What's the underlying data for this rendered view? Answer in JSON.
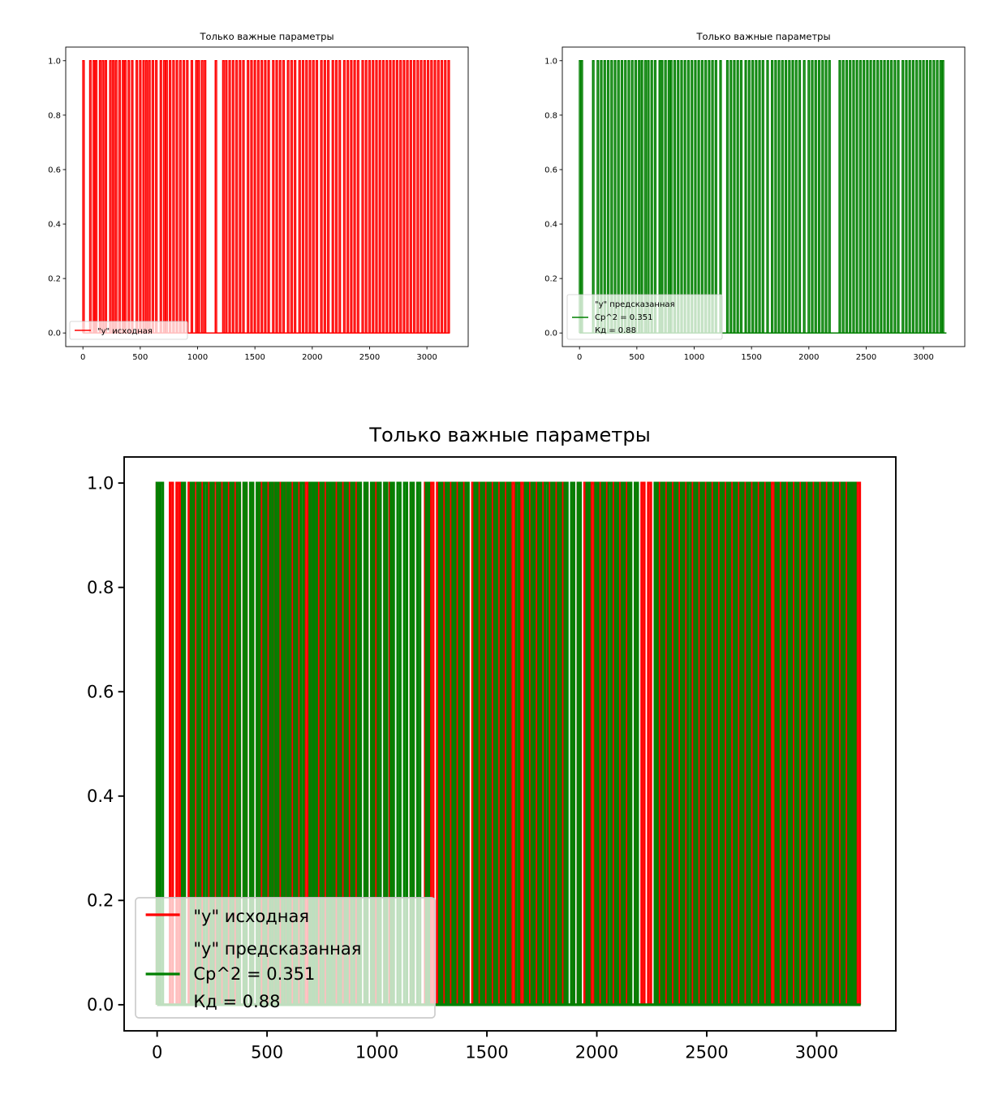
{
  "chart_data": [
    {
      "type": "line",
      "title": "Только важные параметры",
      "xlabel": "",
      "ylabel": "",
      "xlim": [
        -150,
        3360
      ],
      "ylim": [
        -0.05,
        1.05
      ],
      "xticks": [
        0,
        500,
        1000,
        1500,
        2000,
        2500,
        3000
      ],
      "yticks": [
        0.0,
        0.2,
        0.4,
        0.6,
        0.8,
        1.0
      ],
      "legend_position": "lower-left",
      "series": [
        {
          "name": "\"y\" исходная",
          "color": "#ff0000",
          "x_range": [
            0,
            3200
          ],
          "value_levels": [
            0,
            1
          ],
          "spikes_at_1": [
            5,
            65,
            95,
            115,
            150,
            175,
            200,
            240,
            265,
            290,
            320,
            350,
            370,
            400,
            430,
            470,
            500,
            530,
            555,
            580,
            610,
            640,
            680,
            710,
            730,
            760,
            790,
            820,
            850,
            880,
            910,
            950,
            990,
            1010,
            1040,
            1065,
            1160,
            1225,
            1250,
            1280,
            1310,
            1340,
            1370,
            1400,
            1440,
            1470,
            1500,
            1530,
            1560,
            1590,
            1620,
            1660,
            1690,
            1720,
            1750,
            1790,
            1820,
            1850,
            1890,
            1920,
            1950,
            1980,
            2010,
            2040,
            2080,
            2110,
            2140,
            2180,
            2210,
            2240,
            2280,
            2310,
            2340,
            2370,
            2400,
            2440,
            2470,
            2500,
            2530,
            2560,
            2590,
            2620,
            2650,
            2680,
            2710,
            2740,
            2770,
            2800,
            2830,
            2860,
            2890,
            2920,
            2950,
            2980,
            3010,
            3040,
            3070,
            3100,
            3130,
            3160,
            3190
          ]
        },
        {
          "name": "\"y\" предсказанная\nCp^2 = 0.351\nКд = 0.88",
          "color": "#008000",
          "x_range": [
            0,
            3200
          ],
          "value_levels": [
            0,
            1
          ],
          "spikes_at_1": [
            5,
            20,
            120,
            160,
            190,
            220,
            250,
            280,
            310,
            340,
            370,
            400,
            430,
            460,
            490,
            520,
            545,
            575,
            600,
            630,
            660,
            700,
            720,
            750,
            780,
            800,
            830,
            860,
            890,
            920,
            950,
            980,
            1010,
            1040,
            1070,
            1100,
            1130,
            1160,
            1190,
            1230,
            1290,
            1320,
            1350,
            1380,
            1410,
            1450,
            1480,
            1510,
            1540,
            1570,
            1600,
            1640,
            1680,
            1710,
            1740,
            1770,
            1800,
            1830,
            1860,
            1890,
            1920,
            1960,
            2000,
            2030,
            2060,
            2090,
            2120,
            2150,
            2180,
            2270,
            2300,
            2330,
            2360,
            2390,
            2420,
            2450,
            2480,
            2510,
            2540,
            2570,
            2600,
            2630,
            2660,
            2690,
            2720,
            2750,
            2780,
            2820,
            2850,
            2880,
            2910,
            2940,
            2970,
            3000,
            3030,
            3060,
            3090,
            3120,
            3150,
            3170
          ]
        }
      ],
      "panels": [
        {
          "title": "Только важные параметры",
          "series_shown": [
            "\"y\" исходная"
          ]
        },
        {
          "title": "Только важные параметры",
          "series_shown": [
            "\"y\" предсказанная\nCp^2 = 0.351\nКд = 0.88"
          ]
        },
        {
          "title": "Только важные параметры",
          "series_shown": [
            "\"y\" исходная",
            "\"y\" предсказанная\nCp^2 = 0.351\nКд = 0.88"
          ]
        }
      ]
    }
  ],
  "legend_labels": {
    "original": "\"y\" исходная",
    "predicted_line1": "\"y\" предсказанная",
    "predicted_line2": "Cp^2 = 0.351",
    "predicted_line3": "Кд = 0.88"
  },
  "title_text": "Только важные параметры",
  "xtick_labels": [
    "0",
    "500",
    "1000",
    "1500",
    "2000",
    "2500",
    "3000"
  ],
  "ytick_labels": [
    "0.0",
    "0.2",
    "0.4",
    "0.6",
    "0.8",
    "1.0"
  ]
}
